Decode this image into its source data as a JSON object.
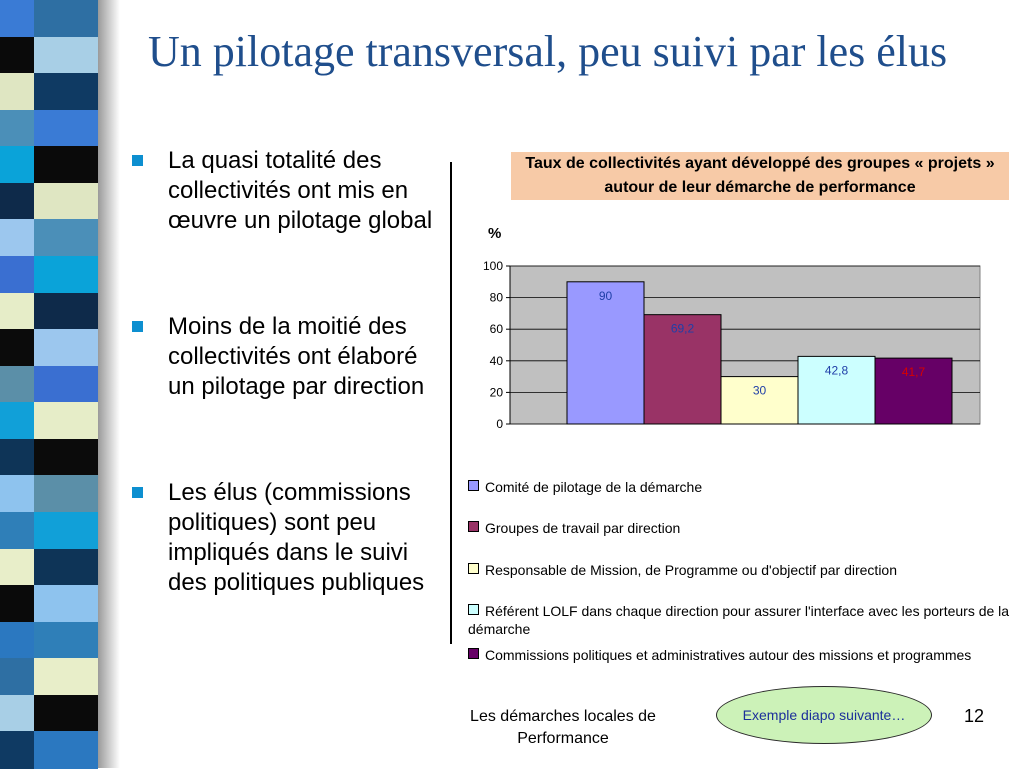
{
  "slide": {
    "title": "Un pilotage transversal, peu suivi par les élus",
    "bullets": [
      "La quasi totalité des collectivités ont mis en œuvre un pilotage global",
      "Moins de la moitié des collectivités ont élaboré un pilotage par direction",
      "Les élus (commissions politiques) sont peu impliqués dans le suivi des politiques publiques"
    ],
    "footer": "Les démarches locales de Performance",
    "next_button": "Exemple diapo suivante…",
    "page_number": "12"
  },
  "colors": {
    "title": "#1f4e8c",
    "bullet": "#0d8fd0",
    "chart_title_bg": "#f7caa7",
    "plot_bg": "#c0c0c0",
    "oval_bg": "#ccf2b8",
    "stripe": [
      "#2e6fa3",
      "#a8cfe6",
      "#0f3a63",
      "#3a7bd5",
      "#0a0a0a",
      "#dfe6c2",
      "#4b8fb8",
      "#0aa3d9",
      "#0e2a4a",
      "#9cc7ee",
      "#3a6fd1",
      "#e6edc8",
      "#0b0b0b",
      "#5b8fa8",
      "#11a0d8",
      "#0e3457",
      "#8ec3ee",
      "#2f7fb8",
      "#e8eec9",
      "#0a0a0a",
      "#2b78c0"
    ]
  },
  "chart_data": {
    "type": "bar",
    "title": "Taux de collectivités ayant développé des groupes « projets »  autour de leur démarche de performance",
    "ylabel": "%",
    "ylim": [
      0,
      100
    ],
    "yticks": [
      0,
      20,
      40,
      60,
      80,
      100
    ],
    "grid": true,
    "legend_position": "bottom",
    "series": [
      {
        "name": "Comité de pilotage de la démarche",
        "value": 90,
        "label": "90",
        "color": "#9999ff",
        "label_color": "#1f3fa8"
      },
      {
        "name": "Groupes de travail par direction",
        "value": 69.2,
        "label": "69,2",
        "color": "#993366",
        "label_color": "#1f3fa8"
      },
      {
        "name": "Responsable de Mission, de Programme ou d'objectif par direction",
        "value": 30,
        "label": "30",
        "color": "#ffffcc",
        "label_color": "#1f3fa8"
      },
      {
        "name": "Référent LOLF dans chaque direction pour assurer l'interface avec les porteurs de la démarche",
        "value": 42.8,
        "label": "42,8",
        "color": "#ccffff",
        "label_color": "#1f3fa8"
      },
      {
        "name": "Commissions politiques et administratives autour des missions et programmes",
        "value": 41.7,
        "label": "41,7",
        "color": "#660066",
        "label_color": "#d80000"
      }
    ]
  }
}
